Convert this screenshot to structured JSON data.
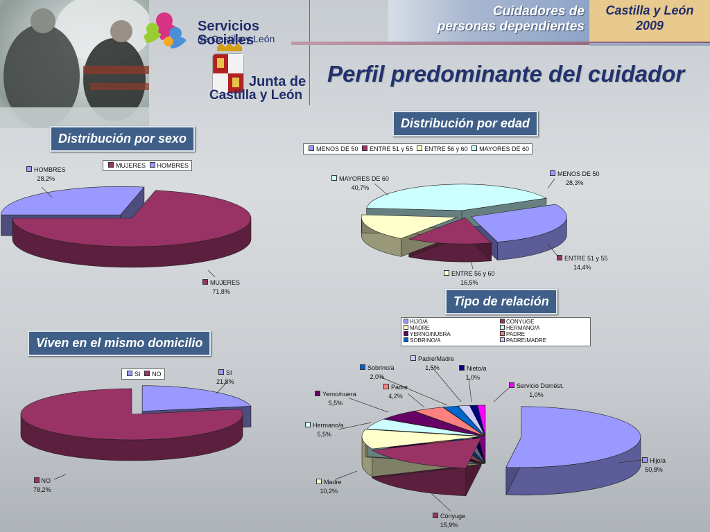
{
  "header": {
    "line1": "Cuidadores de",
    "line2": "personas dependientes",
    "region": "Castilla y León",
    "year": "2009",
    "logo1_line1": "Servicios Sociales",
    "logo1_line2": "de Castilla y León",
    "logo2_line1": "Junta de",
    "logo2_line2": "Castilla y León"
  },
  "page_title": "Perfil predominante del cuidador",
  "colors": {
    "violet": "#9999ff",
    "maroon": "#993366",
    "cream": "#ffffcc",
    "lightcyan": "#ccffff",
    "navy": "#660066",
    "salmon": "#ff8080",
    "blue": "#0066cc",
    "lavender": "#ccccff",
    "darkblue": "#000080",
    "magenta": "#ff00ff",
    "section_label_bg": "#3f5f88"
  },
  "chart_data": [
    {
      "id": "sexo",
      "type": "pie",
      "title": "Distribución por sexo",
      "legend": [
        "MUJERES",
        "HOMBRES"
      ],
      "series": [
        {
          "name": "HOMBRES",
          "value": 28.2,
          "label": "HOMBRES",
          "pct": "28,2%"
        },
        {
          "name": "MUJERES",
          "value": 71.8,
          "label": "MUJERES",
          "pct": "71,8%"
        }
      ]
    },
    {
      "id": "edad",
      "type": "pie",
      "title": "Distribución por edad",
      "legend": [
        "MENOS DE 50",
        "ENTRE 51 y 55",
        "ENTRE 56 y 60",
        "MAYORES DE 60"
      ],
      "series": [
        {
          "name": "MENOS DE 50",
          "value": 28.3,
          "label": "MENOS DE 50",
          "pct": "28,3%"
        },
        {
          "name": "ENTRE 51 y 55",
          "value": 14.4,
          "label": "ENTRE 51 y 55",
          "pct": "14,4%"
        },
        {
          "name": "ENTRE 56 y 60",
          "value": 16.5,
          "label": "ENTRE 56 y 60",
          "pct": "16,5%"
        },
        {
          "name": "MAYORES DE 60",
          "value": 40.7,
          "label": "MAYORES DE 60",
          "pct": "40,7%"
        }
      ]
    },
    {
      "id": "domicilio",
      "type": "pie",
      "title": "Viven en el mismo domicilio",
      "legend": [
        "SI",
        "NO"
      ],
      "series": [
        {
          "name": "SI",
          "value": 21.8,
          "label": "SI",
          "pct": "21,8%"
        },
        {
          "name": "NO",
          "value": 78.2,
          "label": "NO",
          "pct": "78,2%"
        }
      ]
    },
    {
      "id": "relacion",
      "type": "pie",
      "title": "Tipo de relación",
      "legend": [
        "HIJO/A",
        "CONYUGE",
        "MADRE",
        "HERMANO/A",
        "YERNO/NUERA",
        "PADRE",
        "SOBRINO/A",
        "PADRE/MADRE"
      ],
      "series": [
        {
          "name": "Hijo/a",
          "value": 50.8,
          "label": "Hijo/a",
          "pct": "50,8%"
        },
        {
          "name": "Cónyuge",
          "value": 15.9,
          "label": "Cónyuge",
          "pct": "15,9%"
        },
        {
          "name": "Madre",
          "value": 10.2,
          "label": "Madre",
          "pct": "10,2%"
        },
        {
          "name": "Hermano/a",
          "value": 5.5,
          "label": "Hermano/a",
          "pct": "5,5%"
        },
        {
          "name": "Yerno/nuera",
          "value": 5.5,
          "label": "Yerno/nuera",
          "pct": "5,5%"
        },
        {
          "name": "Padre",
          "value": 4.2,
          "label": "Padre",
          "pct": "4,2%"
        },
        {
          "name": "Sobrino/a",
          "value": 2.0,
          "label": "Sobrino/a",
          "pct": "2,0%"
        },
        {
          "name": "Padre/Madre",
          "value": 1.5,
          "label": "Padre/Madre",
          "pct": "1,5%"
        },
        {
          "name": "Nieto/a",
          "value": 1.0,
          "label": "Nieto/a",
          "pct": "1,0%"
        },
        {
          "name": "Servicio Doméstico",
          "value": 1.0,
          "label": "Servicio Domést.",
          "pct": "1,0%"
        }
      ]
    }
  ]
}
